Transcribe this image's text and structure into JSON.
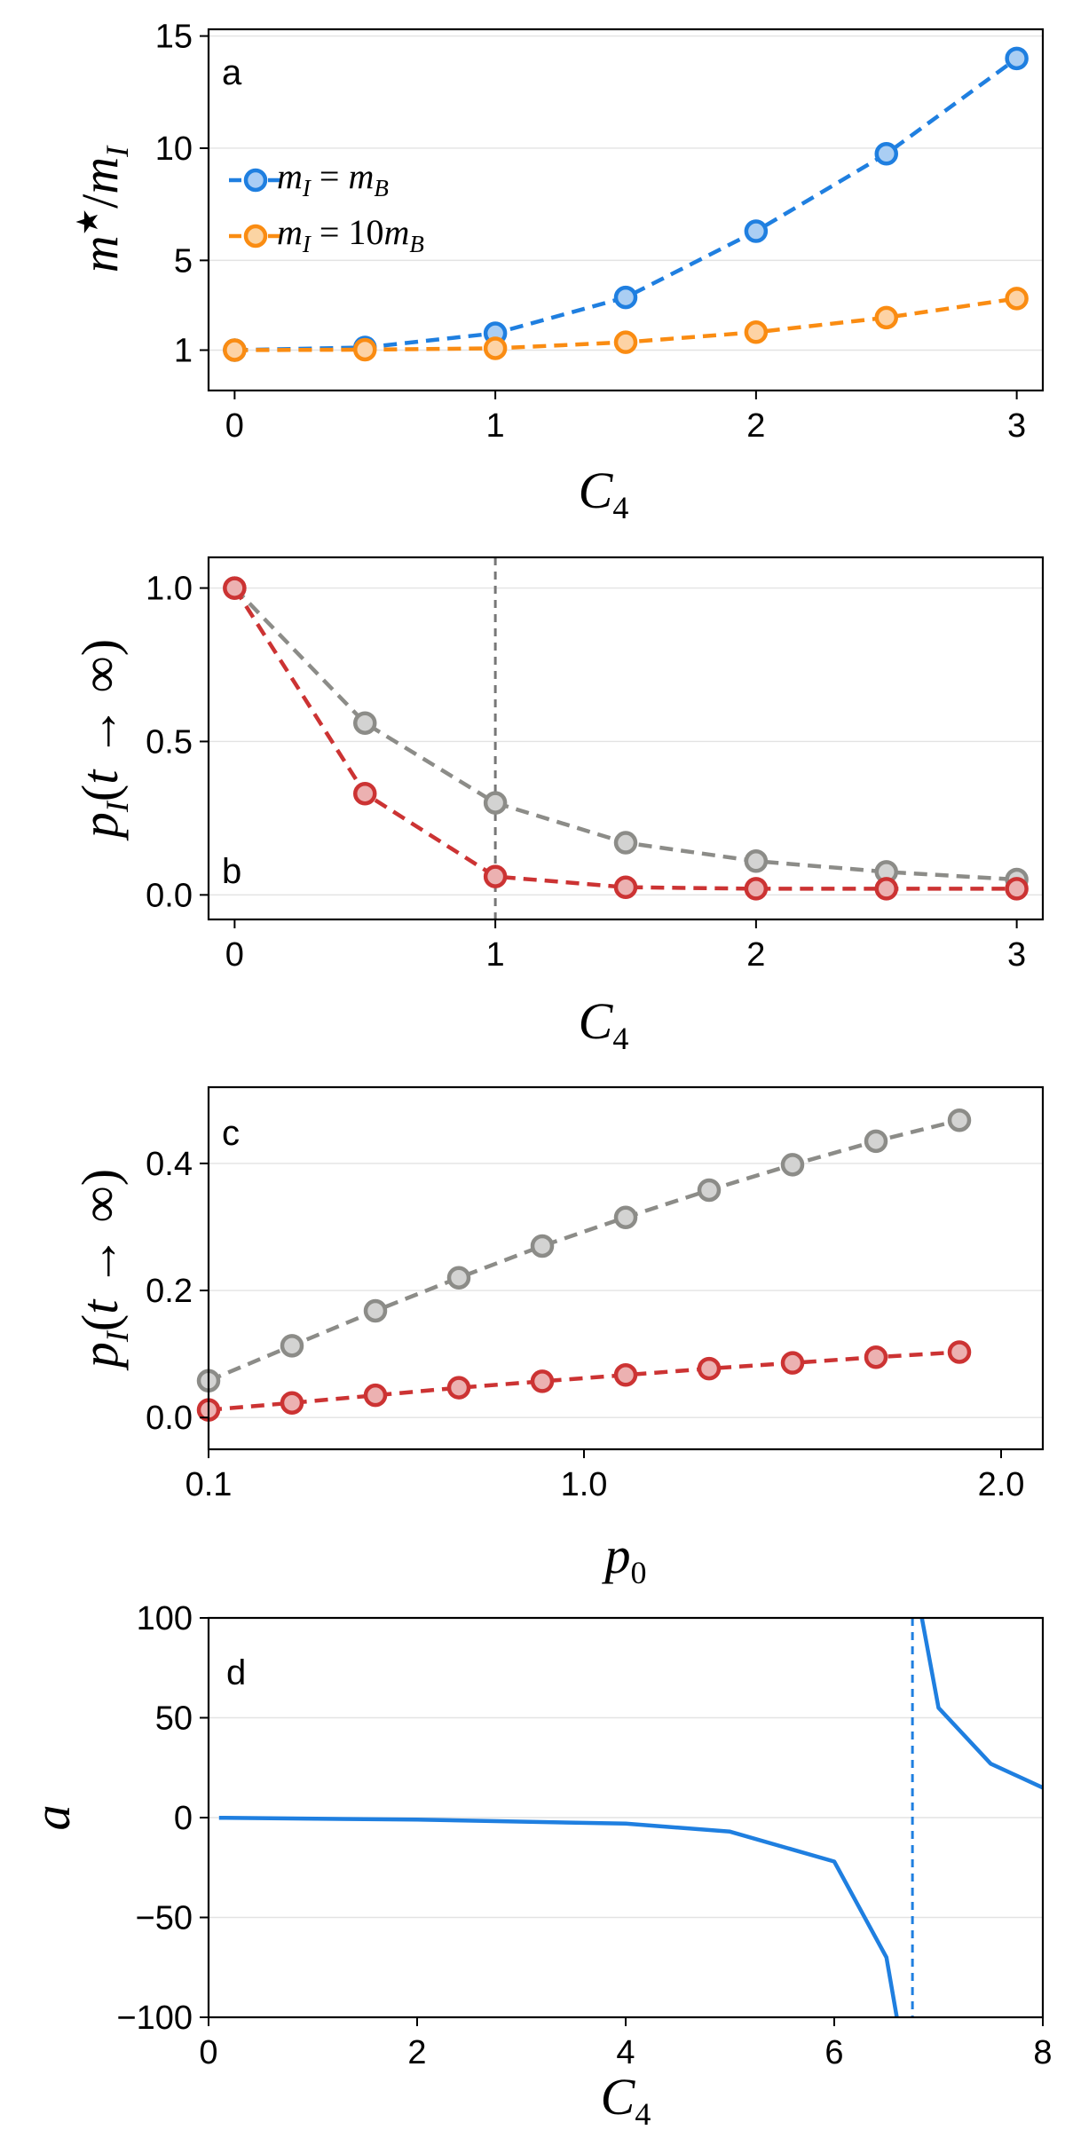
{
  "chart_data": [
    {
      "panel": "a",
      "type": "line",
      "xlabel": "C_4",
      "ylabel": "m* / m_I",
      "xlim": [
        -0.1,
        3.1
      ],
      "ylim": [
        -0.8,
        15.3
      ],
      "xticks": [
        0,
        1,
        2,
        3
      ],
      "xtick_labels": [
        "0",
        "1",
        "2",
        "3"
      ],
      "yticks": [
        1,
        5,
        10,
        15
      ],
      "ytick_labels": [
        "1",
        "5",
        "10",
        "15"
      ],
      "grid": true,
      "legend_position": "left",
      "series": [
        {
          "name": "m_I = m_B",
          "color": "#1f7fe0",
          "x": [
            0,
            0.5,
            1,
            1.5,
            2,
            2.5,
            3
          ],
          "y": [
            1.0,
            1.12,
            1.75,
            3.35,
            6.3,
            9.75,
            14.0
          ]
        },
        {
          "name": "m_I = 10m_B",
          "color": "#fa8c12",
          "x": [
            0,
            0.5,
            1,
            1.5,
            2,
            2.5,
            3
          ],
          "y": [
            1.0,
            1.02,
            1.08,
            1.35,
            1.8,
            2.45,
            3.3
          ]
        }
      ]
    },
    {
      "panel": "b",
      "type": "line",
      "xlabel": "C_4",
      "ylabel": "p_I(t → ∞)",
      "xlim": [
        -0.1,
        3.1
      ],
      "ylim": [
        -0.08,
        1.1
      ],
      "xticks": [
        0,
        1,
        2,
        3
      ],
      "xtick_labels": [
        "0",
        "1",
        "2",
        "3"
      ],
      "yticks": [
        0.0,
        0.5,
        1.0
      ],
      "ytick_labels": [
        "0.0",
        "0.5",
        "1.0"
      ],
      "grid": true,
      "vline": {
        "x": 1,
        "color": "#777777"
      },
      "series": [
        {
          "name": "gray",
          "color": "#8c8c88",
          "x": [
            0,
            0.5,
            1,
            1.5,
            2,
            2.5,
            3
          ],
          "y": [
            1.0,
            0.56,
            0.3,
            0.17,
            0.11,
            0.075,
            0.05
          ]
        },
        {
          "name": "red",
          "color": "#cc3333",
          "x": [
            0,
            0.5,
            1,
            1.5,
            2,
            2.5,
            3
          ],
          "y": [
            1.0,
            0.33,
            0.06,
            0.025,
            0.02,
            0.02,
            0.02
          ]
        }
      ]
    },
    {
      "panel": "c",
      "type": "line",
      "xlabel": "p_0",
      "ylabel": "p_I(t → ∞)",
      "xlim": [
        0.1,
        2.1
      ],
      "ylim": [
        -0.05,
        0.52
      ],
      "xticks": [
        0.1,
        1.0,
        2.0
      ],
      "xtick_labels": [
        "0.1",
        "1.0",
        "2.0"
      ],
      "yticks": [
        0.0,
        0.2,
        0.4
      ],
      "ytick_labels": [
        "0.0",
        "0.2",
        "0.4"
      ],
      "grid": true,
      "series": [
        {
          "name": "gray",
          "color": "#8c8c88",
          "x": [
            0.1,
            0.3,
            0.5,
            0.7,
            0.9,
            1.1,
            1.3,
            1.5,
            1.7,
            1.9
          ],
          "y": [
            0.058,
            0.113,
            0.168,
            0.22,
            0.27,
            0.315,
            0.358,
            0.398,
            0.435,
            0.468
          ]
        },
        {
          "name": "red",
          "color": "#cc3333",
          "x": [
            0.1,
            0.3,
            0.5,
            0.7,
            0.9,
            1.1,
            1.3,
            1.5,
            1.7,
            1.9
          ],
          "y": [
            0.012,
            0.023,
            0.035,
            0.047,
            0.057,
            0.067,
            0.077,
            0.086,
            0.095,
            0.103
          ]
        }
      ]
    },
    {
      "panel": "d",
      "type": "line",
      "xlabel": "C_4",
      "ylabel": "a",
      "xlim": [
        0,
        8
      ],
      "ylim": [
        -100,
        100
      ],
      "xticks": [
        0,
        2,
        4,
        6,
        8
      ],
      "xtick_labels": [
        "0",
        "2",
        "4",
        "6",
        "8"
      ],
      "yticks": [
        -100,
        -50,
        0,
        50,
        100
      ],
      "ytick_labels": [
        "−100",
        "−50",
        "0",
        "50",
        "100"
      ],
      "grid": true,
      "vline": {
        "x": 6.75,
        "color": "#1f7fe0"
      },
      "curve": {
        "type": "pole",
        "pole_x": 6.75,
        "color": "#1f7fe0",
        "x_start": 0.1,
        "x_end": 8,
        "points": [
          [
            0.1,
            -0.1
          ],
          [
            2,
            -1
          ],
          [
            4,
            -3
          ],
          [
            5,
            -7
          ],
          [
            6,
            -22
          ],
          [
            6.5,
            -70
          ],
          [
            6.6,
            -100
          ],
          [
            6.84,
            100
          ],
          [
            7,
            55
          ],
          [
            7.5,
            27
          ],
          [
            8,
            15
          ]
        ]
      }
    }
  ],
  "legend": [
    {
      "label": "m_I = m_B",
      "color": "#1f7fe0"
    },
    {
      "label": "m_I = 10m_B",
      "color": "#fa8c12"
    }
  ],
  "panel_labels": [
    "a",
    "b",
    "c",
    "d"
  ]
}
